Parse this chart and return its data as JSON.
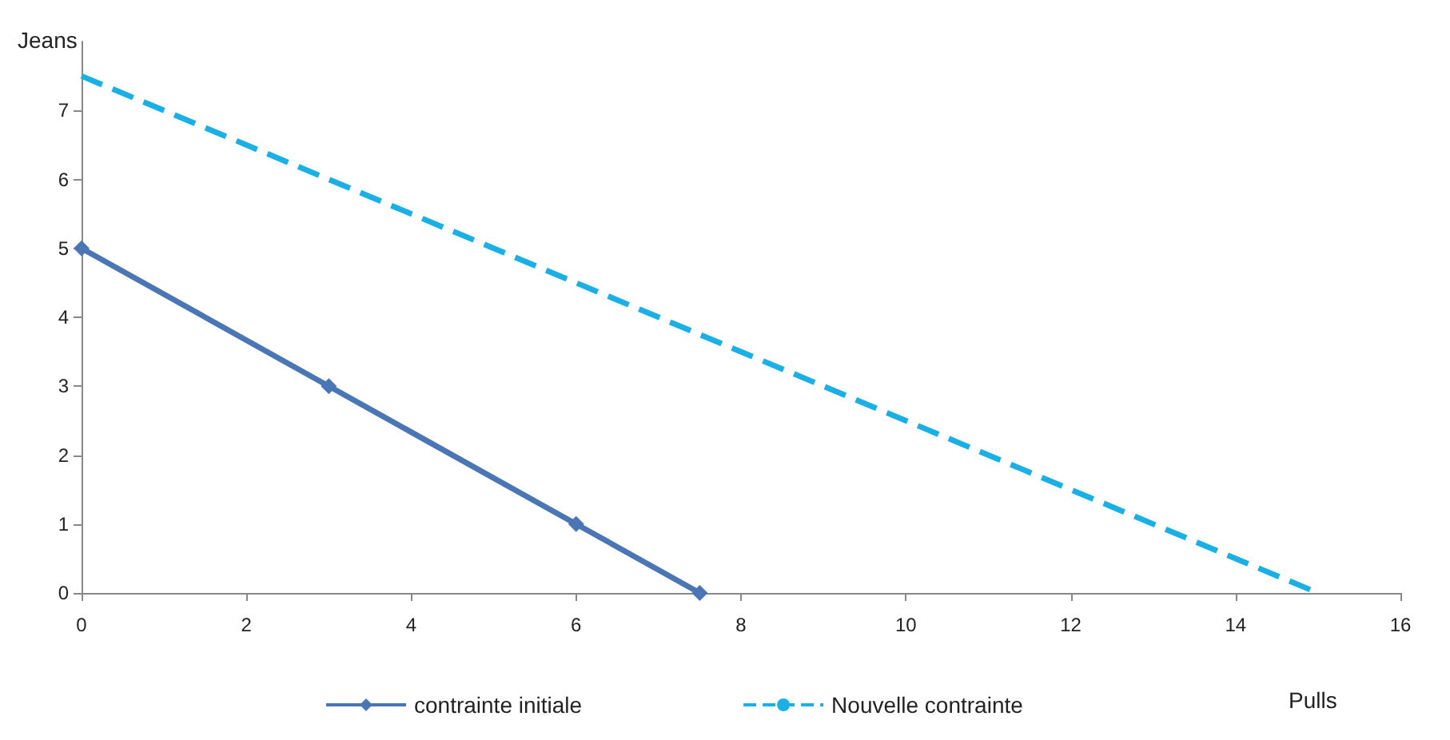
{
  "chart_data": {
    "type": "line",
    "xlabel": "Pulls",
    "ylabel": "Jeans",
    "series": [
      {
        "name": "contrainte initiale",
        "color": "#4a76b5",
        "x": [
          0,
          3,
          6,
          7.5
        ],
        "values": [
          5,
          3,
          1,
          0
        ],
        "marker": "diamond",
        "line_style": "solid"
      },
      {
        "name": "Nouvelle contrainte",
        "color": "#1ab0e6",
        "x": [
          0,
          15
        ],
        "values": [
          7.5,
          0
        ],
        "marker": "none",
        "line_style": "dashed"
      }
    ],
    "xlim": [
      0,
      16
    ],
    "xticks": [
      0,
      2,
      4,
      6,
      8,
      10,
      12,
      14,
      16
    ],
    "ylim": [
      0,
      8
    ],
    "yticks": [
      0,
      1,
      2,
      3,
      4,
      5,
      6,
      7
    ],
    "grid": false,
    "legend": "bottom"
  }
}
